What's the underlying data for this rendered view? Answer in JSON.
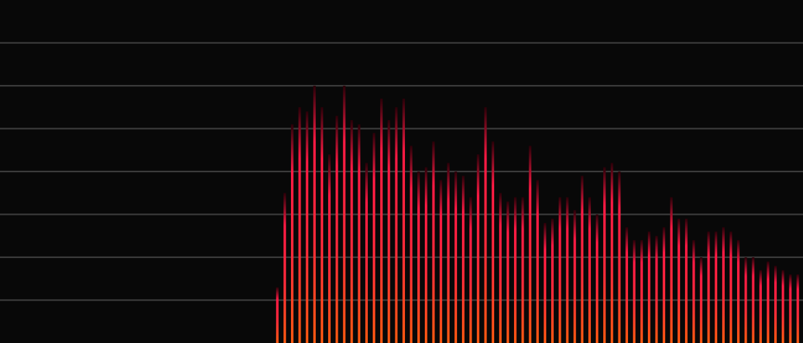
{
  "chart_data": {
    "type": "bar",
    "title": "",
    "xlabel": "",
    "ylabel": "",
    "grid": true,
    "gridlines": [
      1,
      2,
      3,
      4,
      5,
      6,
      7
    ],
    "ylim": [
      0,
      8
    ],
    "xlim": [
      0,
      108
    ],
    "colors": {
      "background": "#080808",
      "grid": "#3c3c3c",
      "bar_top": "#ff1a44",
      "bar_mid": "#ff2a3a",
      "bar_bottom": "#ff5a10",
      "bar_fade": "#2a0008"
    },
    "x": [
      37.3,
      38.3,
      39.3,
      40.3,
      41.3,
      42.3,
      43.3,
      44.3,
      45.3,
      46.3,
      47.3,
      48.3,
      49.3,
      50.3,
      51.3,
      52.3,
      53.3,
      54.3,
      55.3,
      56.3,
      57.3,
      58.3,
      59.3,
      60.3,
      61.3,
      62.3,
      63.3,
      64.3,
      65.3,
      66.3,
      67.3,
      68.3,
      69.3,
      70.3,
      71.3,
      72.3,
      73.3,
      74.3,
      75.3,
      76.3,
      77.3,
      78.3,
      79.3,
      80.3,
      81.3,
      82.3,
      83.3,
      84.3,
      85.3,
      86.3,
      87.3,
      88.3,
      89.3,
      90.3,
      91.3,
      92.3,
      93.3,
      94.3,
      95.3,
      96.3,
      97.3,
      98.3,
      99.3,
      100.3,
      101.3,
      102.3,
      103.3,
      104.3,
      105.3,
      106.3,
      107.3
    ],
    "values": [
      1.3,
      3.5,
      5.1,
      5.5,
      5.4,
      6.0,
      5.5,
      4.4,
      5.3,
      6.0,
      5.2,
      5.1,
      4.2,
      4.9,
      5.7,
      5.2,
      5.5,
      5.7,
      4.6,
      4.0,
      4.1,
      4.7,
      3.8,
      4.2,
      4.0,
      3.9,
      3.4,
      4.4,
      5.5,
      4.7,
      3.5,
      3.3,
      3.4,
      3.4,
      4.6,
      3.8,
      2.8,
      2.9,
      3.4,
      3.4,
      3.1,
      3.9,
      3.4,
      3.0,
      4.1,
      4.2,
      4.0,
      2.7,
      2.4,
      2.4,
      2.6,
      2.5,
      2.7,
      3.4,
      2.9,
      2.9,
      2.4,
      2.0,
      2.6,
      2.6,
      2.7,
      2.6,
      2.4,
      2.0,
      2.0,
      1.7,
      1.9,
      1.8,
      1.7,
      1.6,
      1.6
    ]
  }
}
